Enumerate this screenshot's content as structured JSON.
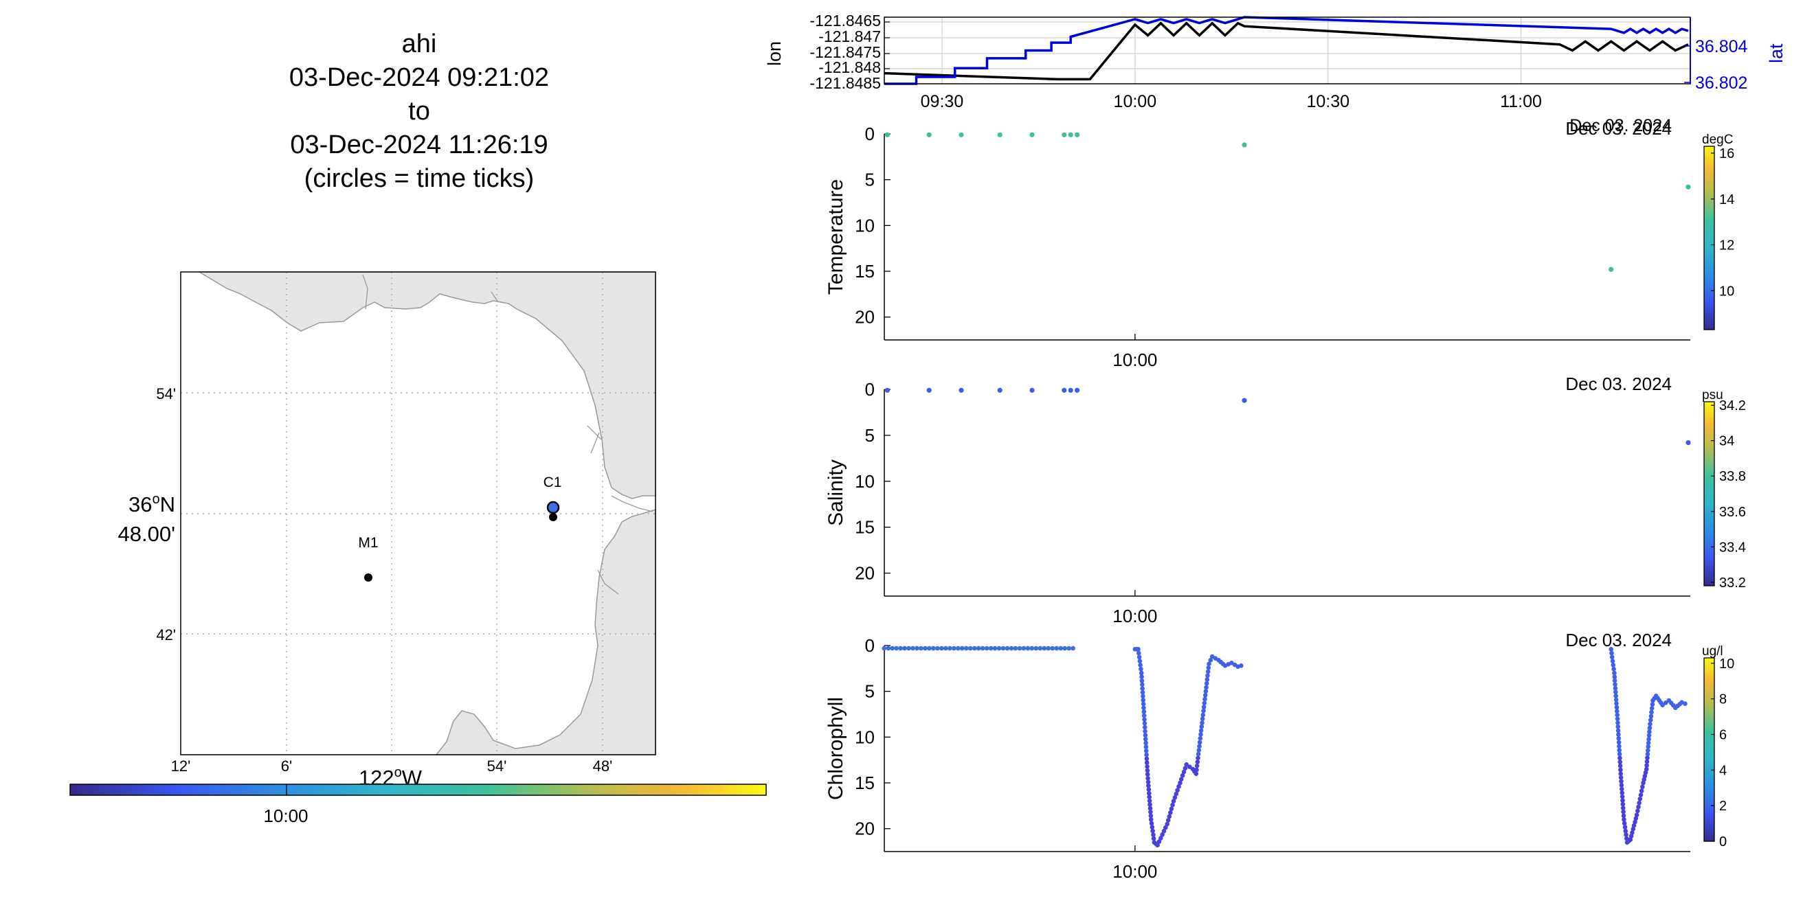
{
  "title": {
    "line1": "ahi",
    "line2": "03-Dec-2024 09:21:02",
    "line3": "to",
    "line4": "03-Dec-2024 11:26:19",
    "line5": "(circles = time ticks)"
  },
  "map": {
    "lat_ticks": [
      "54'",
      "48.00'",
      "42'"
    ],
    "lat_deg": "36",
    "lat_sup": "o",
    "lat_hemi": "N",
    "lon_ticks": [
      "12'",
      "6'",
      "54'",
      "48'"
    ],
    "lon_deg": "122",
    "lon_sup": "o",
    "lon_hemi": "W",
    "stations": [
      {
        "name": "M1"
      },
      {
        "name": "C1"
      }
    ],
    "colors": {
      "land": "#e5e5e5",
      "coast": "#9a9a9a",
      "track": "#3d73e8"
    }
  },
  "time_colorbar": {
    "tick_label": "10:00",
    "colors": [
      "#352a87",
      "#3b55f0",
      "#2e8ee0",
      "#2fb5c8",
      "#3fc19c",
      "#b6bd50",
      "#f6b936",
      "#f9fb0e"
    ]
  },
  "chart_data": [
    {
      "type": "line",
      "id": "position",
      "ylabel": "lon",
      "y2label": "lat",
      "x_ticks": [
        "09:30",
        "10:00",
        "10:30",
        "11:00"
      ],
      "date_label": "Dec 03. 2024",
      "yticks": [
        "-121.8465",
        "-121.847",
        "-121.8475",
        "-121.848",
        "-121.8485"
      ],
      "y2ticks": [
        "36.804",
        "36.802"
      ],
      "ylim": [
        -121.8486,
        -121.8464
      ],
      "y2lim": [
        36.8018,
        36.8052
      ],
      "xlim": [
        "09:21:02",
        "11:26:19"
      ],
      "series": [
        {
          "axis": "lon",
          "color": "#000000",
          "x": [
            "09:21",
            "09:48",
            "09:53",
            "10:00",
            "10:02",
            "10:04",
            "10:06",
            "10:08",
            "10:10",
            "10:12",
            "10:14",
            "10:16",
            "10:17",
            "11:06",
            "11:08",
            "11:10",
            "11:12",
            "11:14",
            "11:16",
            "11:18",
            "11:20",
            "11:22",
            "11:24",
            "11:26"
          ],
          "y": [
            -121.84825,
            -121.84845,
            -121.84845,
            -121.84665,
            -121.847,
            -121.8466,
            -121.847,
            -121.8466,
            -121.847,
            -121.8466,
            -121.847,
            -121.8466,
            -121.8467,
            -121.8473,
            -121.8475,
            -121.8472,
            -121.8475,
            -121.8472,
            -121.8475,
            -121.8472,
            -121.8475,
            -121.8472,
            -121.8475,
            -121.8473
          ]
        },
        {
          "axis": "lat",
          "color": "#0000d8",
          "x": [
            "09:21",
            "09:26",
            "09:26",
            "09:32",
            "09:32",
            "09:37",
            "09:37",
            "09:43",
            "09:43",
            "09:47",
            "09:47",
            "09:50",
            "09:50",
            "10:00",
            "10:02",
            "10:04",
            "10:06",
            "10:08",
            "10:10",
            "10:12",
            "10:14",
            "10:16",
            "10:17",
            "11:14",
            "11:16",
            "11:17",
            "11:18",
            "11:19",
            "11:20",
            "11:21",
            "11:22",
            "11:23",
            "11:24",
            "11:25",
            "11:26"
          ],
          "y": [
            36.8018,
            36.8018,
            36.80215,
            36.80215,
            36.8026,
            36.8026,
            36.8031,
            36.8031,
            36.8035,
            36.8035,
            36.8039,
            36.8039,
            36.8042,
            36.8051,
            36.8049,
            36.8051,
            36.8049,
            36.8051,
            36.8049,
            36.8051,
            36.8049,
            36.8051,
            36.8052,
            36.8046,
            36.8044,
            36.8046,
            36.8044,
            36.8046,
            36.8044,
            36.8046,
            36.8044,
            36.8046,
            36.8044,
            36.8046,
            36.8045
          ]
        }
      ]
    },
    {
      "type": "scatter",
      "id": "temperature",
      "ylabel": "Temperature",
      "x_tick": "10:00",
      "date_label": "Dec 03. 2024",
      "yticks": [
        "0",
        "5",
        "10",
        "15",
        "20"
      ],
      "ylim": [
        0,
        22.5
      ],
      "colorbar": {
        "unit": "degC",
        "ticks": [
          "16",
          "14",
          "12",
          "10"
        ],
        "range": [
          8.3,
          16.3
        ]
      },
      "points": {
        "x": [
          "09:21:30",
          "09:28",
          "09:33",
          "09:39",
          "09:44",
          "09:49",
          "09:50",
          "09:51",
          "10:17",
          "11:14",
          "11:26"
        ],
        "y": [
          0.1,
          0.1,
          0.1,
          0.1,
          0.1,
          0.1,
          0.1,
          0.1,
          1.2,
          14.8,
          5.8
        ],
        "color": "#3fbe9e"
      }
    },
    {
      "type": "scatter",
      "id": "salinity",
      "ylabel": "Salinity",
      "x_tick": "10:00",
      "date_label": "Dec 03. 2024",
      "yticks": [
        "0",
        "5",
        "10",
        "15",
        "20"
      ],
      "ylim": [
        0,
        22.5
      ],
      "colorbar": {
        "unit": "psu",
        "ticks": [
          "34.2",
          "34",
          "33.8",
          "33.6",
          "33.4",
          "33.2"
        ],
        "range": [
          33.18,
          34.22
        ]
      },
      "points": {
        "x": [
          "09:21:30",
          "09:28",
          "09:33",
          "09:39",
          "09:44",
          "09:49",
          "09:50",
          "09:51",
          "10:17",
          "11:26"
        ],
        "y": [
          0.1,
          0.1,
          0.1,
          0.1,
          0.1,
          0.1,
          0.1,
          0.1,
          1.2,
          5.8
        ],
        "color": "#3f5ae6"
      }
    },
    {
      "type": "scatter",
      "id": "chlorophyll",
      "ylabel": "Chlorophyll",
      "x_tick": "10:00",
      "date_label": "Dec 03. 2024",
      "yticks": [
        "0",
        "5",
        "10",
        "15",
        "20"
      ],
      "ylim": [
        0,
        22.5
      ],
      "colorbar": {
        "unit": "ug/l",
        "ticks": [
          "10",
          "8",
          "6",
          "4",
          "2",
          "0"
        ],
        "range": [
          0,
          10.3
        ]
      },
      "profiles": [
        {
          "x": [
            "09:21:00",
            "09:51:00"
          ],
          "y": [
            0.3,
            0.3
          ],
          "color": "#3f6be4"
        },
        {
          "x": [
            "10:00:00",
            "10:00:30",
            "10:01:00",
            "10:01:30",
            "10:02:00",
            "10:02:30",
            "10:03:00",
            "10:03:30",
            "10:05:00",
            "10:06:00",
            "10:07:00",
            "10:08:00",
            "10:09:00",
            "10:09:30",
            "10:10:00",
            "10:10:30",
            "10:11:00",
            "10:11:30",
            "10:12:00",
            "10:13:00",
            "10:14:00",
            "10:15:00",
            "10:16:00",
            "10:17:00"
          ],
          "y": [
            0.4,
            0.4,
            3.0,
            8.5,
            14.5,
            19.0,
            21.5,
            21.8,
            19.5,
            17.0,
            15.0,
            13.0,
            13.5,
            14.0,
            11.0,
            8.0,
            5.0,
            2.0,
            1.2,
            1.6,
            2.2,
            1.9,
            2.3,
            2.1
          ],
          "color": "#3f60e8"
        },
        {
          "x": [
            "11:14:00",
            "11:14:30",
            "11:15:00",
            "11:15:30",
            "11:16:00",
            "11:16:30",
            "11:17:00",
            "11:18:00",
            "11:19:00",
            "11:19:30",
            "11:20:00",
            "11:20:30",
            "11:21:00",
            "11:21:30",
            "11:22:00",
            "11:23:00",
            "11:24:00",
            "11:25:00",
            "11:26:00"
          ],
          "y": [
            0.4,
            3.0,
            8.0,
            14.0,
            19.0,
            21.5,
            21.2,
            18.5,
            15.0,
            13.5,
            9.0,
            6.0,
            5.5,
            6.0,
            6.5,
            6.0,
            6.8,
            6.2,
            6.5
          ],
          "color": "#3f60e8"
        }
      ]
    }
  ]
}
